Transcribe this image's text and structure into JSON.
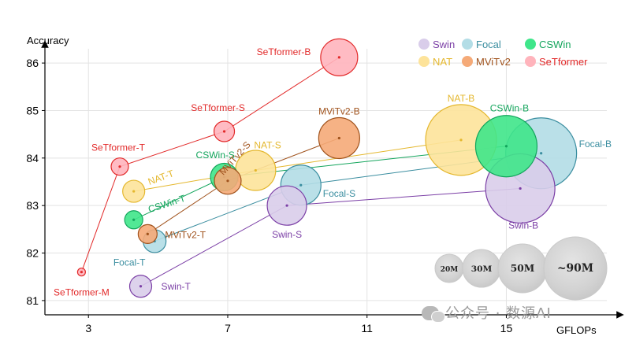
{
  "chart_data": {
    "type": "scatter",
    "xlabel": "GFLOPs",
    "ylabel": "Accuracy",
    "xlim": [
      1.75,
      18.0
    ],
    "ylim": [
      80.7,
      86.3
    ],
    "xticks": [
      3,
      7,
      11,
      15
    ],
    "yticks": [
      81,
      82,
      83,
      84,
      85,
      86
    ],
    "grid": true,
    "series": [
      {
        "name": "Swin",
        "color": "#7b3fa6",
        "fill": "#d9cdea",
        "points": [
          {
            "label": "Swin-T",
            "x": 4.5,
            "y": 81.3,
            "size": 28
          },
          {
            "label": "Swin-S",
            "x": 8.7,
            "y": 83.0,
            "size": 50
          },
          {
            "label": "Swin-B",
            "x": 15.4,
            "y": 83.36,
            "size": 88
          }
        ]
      },
      {
        "name": "Focal",
        "color": "#3b8ea0",
        "fill": "#b3dde6",
        "points": [
          {
            "label": "Focal-T",
            "x": 4.9,
            "y": 82.25,
            "size": 29
          },
          {
            "label": "Focal-S",
            "x": 9.1,
            "y": 83.43,
            "size": 51
          },
          {
            "label": "Focal-B",
            "x": 16.0,
            "y": 84.1,
            "size": 90
          }
        ]
      },
      {
        "name": "CSWin",
        "color": "#13a55c",
        "fill": "#3fe68a",
        "points": [
          {
            "label": "CSWin-T",
            "x": 4.3,
            "y": 82.7,
            "size": 23
          },
          {
            "label": "CSWin-S",
            "x": 6.9,
            "y": 83.6,
            "size": 35
          },
          {
            "label": "CSWin-B",
            "x": 15.0,
            "y": 84.25,
            "size": 78
          }
        ]
      },
      {
        "name": "NAT",
        "color": "#e4b72d",
        "fill": "#fde39a",
        "points": [
          {
            "label": "NAT-T",
            "x": 4.3,
            "y": 83.3,
            "size": 28
          },
          {
            "label": "NAT-S",
            "x": 7.8,
            "y": 83.74,
            "size": 51
          },
          {
            "label": "NAT-B",
            "x": 13.7,
            "y": 84.38,
            "size": 90
          }
        ]
      },
      {
        "name": "MViTv2",
        "color": "#a0521c",
        "fill": "#f5aa78",
        "points": [
          {
            "label": "MViTv2-T",
            "x": 4.7,
            "y": 82.4,
            "size": 24
          },
          {
            "label": "MViTv2-S",
            "x": 7.0,
            "y": 83.52,
            "size": 34
          },
          {
            "label": "MViTv2-B",
            "x": 10.2,
            "y": 84.42,
            "size": 52
          }
        ]
      },
      {
        "name": "SeTformer",
        "color": "#e22a2a",
        "fill": "#ffb4bc",
        "points": [
          {
            "label": "SeTformer-M",
            "x": 2.8,
            "y": 81.6,
            "size": 10
          },
          {
            "label": "SeTformer-T",
            "x": 3.9,
            "y": 83.82,
            "size": 22
          },
          {
            "label": "SeTformer-S",
            "x": 6.9,
            "y": 84.56,
            "size": 26
          },
          {
            "label": "SeTformer-B",
            "x": 10.2,
            "y": 86.12,
            "size": 47
          }
        ]
      }
    ],
    "size_legend": [
      "20M",
      "30M",
      "50M",
      "~90M"
    ],
    "watermark": "公众号 · 数源AI"
  }
}
